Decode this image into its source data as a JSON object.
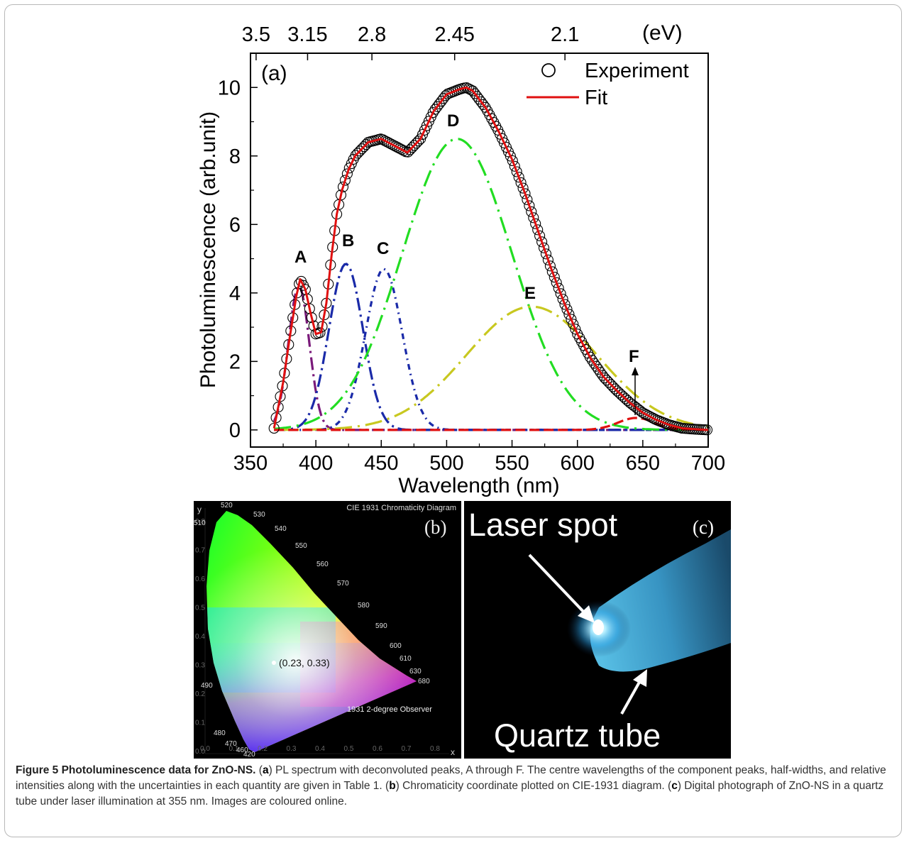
{
  "panel_a": {
    "label": "(a)",
    "ylabel": "Photoluminescence (arb.unit)",
    "xlabel": "Wavelength (nm)",
    "x_ticks": [
      "350",
      "400",
      "450",
      "500",
      "550",
      "600",
      "650",
      "700"
    ],
    "y_ticks": [
      "0",
      "2",
      "4",
      "6",
      "8",
      "10"
    ],
    "top_ticks": [
      "3.5",
      "3.15",
      "2.8",
      "2.45",
      "2.1"
    ],
    "top_unit": "(eV)",
    "legend": {
      "experiment": "Experiment",
      "fit": "Fit"
    },
    "peak_labels": [
      "A",
      "B",
      "C",
      "D",
      "E",
      "F"
    ]
  },
  "chart_data": {
    "type": "line",
    "xlim": [
      350,
      700
    ],
    "ylim": [
      -0.5,
      11
    ],
    "top_axis_ev": [
      3.5,
      3.15,
      2.8,
      2.45,
      2.1
    ],
    "legend_position": "top-right",
    "series": [
      {
        "name": "Experiment",
        "marker": "open-circle",
        "x": [
          368,
          375,
          380,
          385,
          388,
          392,
          396,
          400,
          404,
          408,
          412,
          416,
          420,
          425,
          430,
          440,
          450,
          460,
          470,
          480,
          490,
          500,
          510,
          515,
          520,
          530,
          540,
          550,
          560,
          570,
          580,
          590,
          600,
          610,
          620,
          630,
          640,
          650,
          660,
          670,
          680,
          690,
          700
        ],
        "y": [
          0.05,
          1.4,
          2.7,
          3.9,
          4.4,
          4.1,
          3.4,
          2.8,
          2.85,
          3.7,
          5.1,
          6.3,
          7.0,
          7.6,
          8.0,
          8.4,
          8.5,
          8.3,
          8.1,
          8.5,
          9.3,
          9.8,
          9.95,
          10.0,
          9.9,
          9.4,
          8.7,
          7.9,
          6.9,
          5.8,
          4.7,
          3.7,
          2.8,
          2.1,
          1.55,
          1.15,
          0.8,
          0.5,
          0.3,
          0.15,
          0.05,
          0.02,
          0.0
        ]
      },
      {
        "name": "Fit",
        "color": "#e01010",
        "x": [
          368,
          375,
          380,
          385,
          388,
          392,
          396,
          400,
          404,
          408,
          412,
          416,
          420,
          425,
          430,
          440,
          450,
          460,
          470,
          480,
          490,
          500,
          510,
          515,
          520,
          530,
          540,
          550,
          560,
          570,
          580,
          590,
          600,
          610,
          620,
          630,
          640,
          650,
          660,
          670,
          680,
          690,
          700
        ],
        "y": [
          0.05,
          1.4,
          2.7,
          3.9,
          4.4,
          4.1,
          3.4,
          2.8,
          2.85,
          3.7,
          5.1,
          6.3,
          7.0,
          7.6,
          8.0,
          8.4,
          8.5,
          8.3,
          8.1,
          8.5,
          9.3,
          9.8,
          9.95,
          10.0,
          9.9,
          9.4,
          8.7,
          7.9,
          6.9,
          5.8,
          4.7,
          3.7,
          2.8,
          2.1,
          1.55,
          1.15,
          0.8,
          0.5,
          0.3,
          0.15,
          0.05,
          0.02,
          0.0
        ]
      }
    ],
    "peaks": [
      {
        "label": "A",
        "center": 387,
        "amplitude": 4.2,
        "sigma": 8,
        "color": "#7a1a7a"
      },
      {
        "label": "B",
        "center": 423,
        "amplitude": 4.85,
        "sigma": 13,
        "color": "#1a2aa8"
      },
      {
        "label": "C",
        "center": 452,
        "amplitude": 4.7,
        "sigma": 14,
        "color": "#1a2aa8"
      },
      {
        "label": "D",
        "center": 508,
        "amplitude": 8.5,
        "sigma": 42,
        "color": "#22dd22"
      },
      {
        "label": "E",
        "center": 565,
        "amplitude": 3.6,
        "sigma": 50,
        "color": "#c8c820"
      },
      {
        "label": "F",
        "center": 645,
        "amplitude": 0.35,
        "sigma": 14,
        "color": "#e01010"
      }
    ]
  },
  "panel_b": {
    "label": "(b)",
    "title": "CIE 1931 Chromaticity Diagram",
    "observer": "1931 2-degree Observer",
    "x_axis": "x",
    "y_axis": "y",
    "point_label": "(0.23, 0.33)",
    "point": {
      "x": 0.23,
      "y": 0.33
    },
    "x_ticks": [
      "0.0",
      "0.1",
      "0.2",
      "0.3",
      "0.4",
      "0.5",
      "0.6",
      "0.7",
      "0.8"
    ],
    "y_ticks": [
      "0.8",
      "0.7",
      "0.6",
      "0.5",
      "0.4",
      "0.3",
      "0.2",
      "0.1",
      "0.0"
    ],
    "wavelength_labels": [
      "520",
      "530",
      "540",
      "550",
      "560",
      "570",
      "580",
      "590",
      "600",
      "610",
      "630",
      "680",
      "510",
      "490",
      "480",
      "470",
      "460",
      "420"
    ]
  },
  "panel_c": {
    "label": "(c)",
    "annotation_1": "Laser spot",
    "annotation_2": "Quartz tube"
  },
  "caption": {
    "title": "Figure 5 Photoluminescence data for ZnO-NS.",
    "part_a_key": "a",
    "part_a": " PL spectrum with deconvoluted peaks, A through F. The centre wavelengths of the component peaks, half-widths, and relative intensities along with the uncertainties in each quantity are given in Table 1. (",
    "part_b_key": "b",
    "part_b": ") Chromaticity coordinate plotted on CIE-1931 diagram. (",
    "part_c_key": "c",
    "part_c": ") Digital photograph of ZnO-NS in a quartz tube under laser illumination at 355 nm. Images are coloured online."
  }
}
